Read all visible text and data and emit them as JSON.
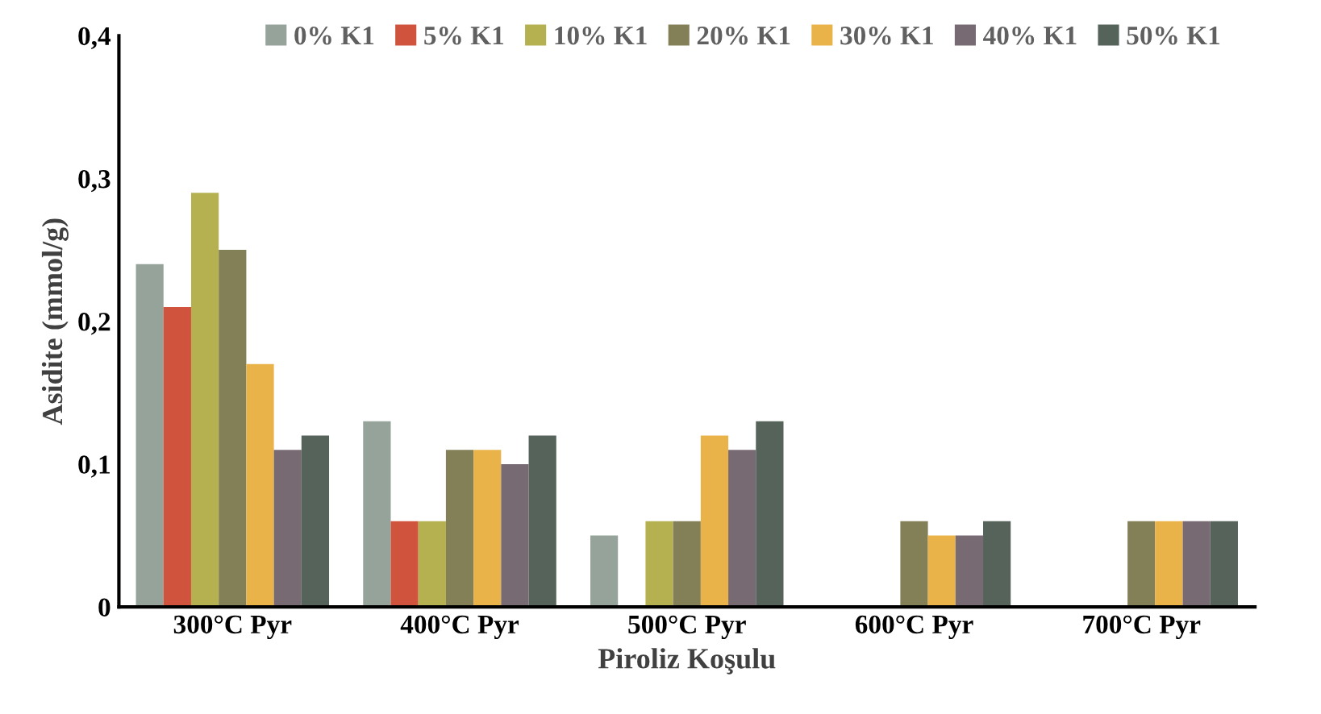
{
  "chart_data": {
    "type": "bar",
    "xlabel": "Piroliz Koşulu",
    "ylabel": "Asidite (mmol/g)",
    "categories": [
      "300°C Pyr",
      "400°C Pyr",
      "500°C Pyr",
      "600°C Pyr",
      "700°C Pyr"
    ],
    "series": [
      {
        "name": "0% K1",
        "color": "#95a39a",
        "values": [
          0.24,
          0.13,
          0.05,
          0,
          0
        ]
      },
      {
        "name": "5% K1",
        "color": "#d0533d",
        "values": [
          0.21,
          0.06,
          0,
          0,
          0
        ]
      },
      {
        "name": "10% K1",
        "color": "#b5b050",
        "values": [
          0.29,
          0.06,
          0.06,
          0,
          0
        ]
      },
      {
        "name": "20% K1",
        "color": "#837f57",
        "values": [
          0.25,
          0.11,
          0.06,
          0.06,
          0.06
        ]
      },
      {
        "name": "30% K1",
        "color": "#e9b34a",
        "values": [
          0.17,
          0.11,
          0.12,
          0.05,
          0.06
        ]
      },
      {
        "name": "40% K1",
        "color": "#776a72",
        "values": [
          0.11,
          0.1,
          0.11,
          0.05,
          0.06
        ]
      },
      {
        "name": "50% K1",
        "color": "#55635a",
        "values": [
          0.12,
          0.12,
          0.13,
          0.06,
          0.06
        ]
      }
    ],
    "ylim": [
      0,
      0.4
    ],
    "yticks": [
      0,
      {
        "value": 0.1,
        "label": "0,1"
      },
      {
        "value": 0.2,
        "label": "0,2"
      },
      {
        "value": 0.3,
        "label": "0,3"
      },
      {
        "value": 0.4,
        "label": "0,4"
      }
    ],
    "grid": false,
    "legend": "top"
  }
}
